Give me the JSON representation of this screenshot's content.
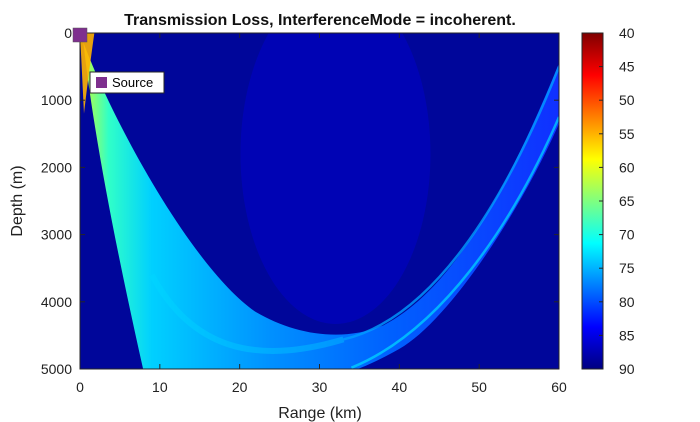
{
  "chart_data": {
    "type": "heatmap",
    "title": "Transmission Loss, InterferenceMode = incoherent.",
    "xlabel": "Range (km)",
    "ylabel": "Depth (m)",
    "xlim": [
      0,
      60
    ],
    "ylim": [
      0,
      5000
    ],
    "y_reversed": true,
    "xticks": [
      "0",
      "10",
      "20",
      "30",
      "40",
      "50",
      "60"
    ],
    "yticks": [
      "0",
      "1000",
      "2000",
      "3000",
      "4000",
      "5000"
    ],
    "colorbar": {
      "colormap": "jet",
      "reversed": true,
      "range": [
        40,
        90
      ],
      "ticks": [
        "40",
        "45",
        "50",
        "55",
        "60",
        "65",
        "70",
        "75",
        "80",
        "85",
        "90"
      ]
    },
    "background_loss_db": 88,
    "ray_bundle": {
      "description": "convergence-zone beam",
      "vertex_range_km": 32,
      "vertex_depth_m": 4550,
      "upper_edge_loss_db": 76,
      "lower_edge_loss_db": 73,
      "near_source_loss_db": 55
    },
    "source": {
      "label": "Source",
      "range_km": 0,
      "depth_m": 0,
      "color": "#7e2f8e"
    }
  }
}
